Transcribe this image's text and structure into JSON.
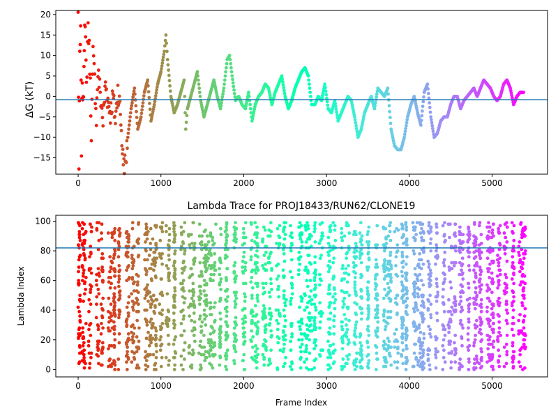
{
  "chart_data": [
    {
      "type": "scatter",
      "title": "",
      "xlabel": "",
      "ylabel": "ΔG (kT)",
      "xlim": [
        -270,
        5670
      ],
      "ylim": [
        -19,
        21
      ],
      "xticks": [
        0,
        1000,
        2000,
        3000,
        4000,
        5000
      ],
      "yticks": [
        -15,
        -10,
        -5,
        0,
        5,
        10,
        15,
        20
      ],
      "hline": -0.8,
      "hline_color": "#1f77b4",
      "colormap": "rainbow (red at frame 0 → violet at last frame)",
      "series": [
        {
          "x": [
            0,
            10,
            20,
            30,
            40,
            50,
            60,
            70,
            80,
            90,
            100,
            120,
            140,
            160,
            180,
            200,
            220,
            240,
            260,
            280,
            300,
            330,
            360,
            390,
            420,
            450,
            480,
            510,
            540,
            570,
            600,
            640,
            680,
            720,
            760,
            800,
            840,
            880,
            920,
            960,
            1000,
            1040,
            1060,
            1080,
            1120,
            1160,
            1200,
            1240,
            1280,
            1300,
            1320,
            1360,
            1400,
            1440,
            1480,
            1520,
            1560,
            1600,
            1640,
            1680,
            1720,
            1760,
            1800,
            1830,
            1860,
            1900,
            1940,
            1980,
            2020,
            2060,
            2100,
            2140,
            2180,
            2220,
            2260,
            2300,
            2340,
            2380,
            2420,
            2460,
            2500,
            2540,
            2580,
            2620,
            2660,
            2700,
            2740,
            2780,
            2820,
            2860,
            2900,
            2940,
            2980,
            3020,
            3060,
            3100,
            3140,
            3180,
            3220,
            3260,
            3300,
            3340,
            3380,
            3420,
            3460,
            3500,
            3540,
            3580,
            3620,
            3660,
            3700,
            3740,
            3780,
            3820,
            3860,
            3900,
            3940,
            3980,
            4020,
            4060,
            4100,
            4140,
            4180,
            4220,
            4260,
            4300,
            4340,
            4380,
            4420,
            4460,
            4500,
            4540,
            4580,
            4620,
            4660,
            4700,
            4740,
            4780,
            4820,
            4860,
            4900,
            4940,
            4980,
            5020,
            5060,
            5100,
            5140,
            5180,
            5220,
            5260,
            5300,
            5340,
            5380
          ],
          "y": [
            20,
            -18,
            10,
            15,
            -12,
            5,
            -3,
            8,
            20,
            12,
            2,
            18,
            8,
            -8,
            10,
            4,
            -5,
            6,
            2,
            -2,
            -6,
            3,
            -1,
            -4,
            0,
            -6,
            2,
            -4,
            -15,
            -17,
            -10,
            -3,
            2,
            -8,
            -5,
            1,
            4,
            -6,
            -2,
            3,
            6,
            11,
            15,
            9,
            0,
            -4,
            -2,
            1,
            4,
            -8,
            -3,
            0,
            3,
            6,
            -1,
            -5,
            -2,
            1,
            4,
            0,
            -3,
            2,
            9,
            10,
            5,
            -1,
            0,
            -2,
            -3,
            1,
            -6,
            -2,
            0,
            1,
            3,
            2,
            -2,
            1,
            3,
            5,
            0,
            -3,
            -1,
            2,
            4,
            6,
            7,
            5,
            -2,
            -2,
            0,
            -1,
            3,
            -3,
            -4,
            -1,
            -6,
            -4,
            -2,
            0,
            -1,
            -5,
            -10,
            -8,
            -4,
            -2,
            0,
            -3,
            2,
            1,
            0,
            2,
            -8,
            -12,
            -13,
            -13,
            -10,
            -5,
            -2,
            0,
            -4,
            -7,
            1,
            3,
            -5,
            -10,
            -9,
            -6,
            -5,
            -5,
            -2,
            0,
            0,
            -3,
            -1,
            0,
            1,
            2,
            0,
            2,
            4,
            3,
            2,
            0,
            -1,
            0,
            3,
            4,
            2,
            -2,
            0,
            1,
            1
          ]
        }
      ]
    },
    {
      "type": "scatter",
      "title": "Lambda Trace for PROJ18433/RUN62/CLONE19",
      "xlabel": "Frame Index",
      "ylabel": "Lambda Index",
      "xlim": [
        -270,
        5670
      ],
      "ylim": [
        -5,
        104
      ],
      "xticks": [
        0,
        1000,
        2000,
        3000,
        4000,
        5000
      ],
      "yticks": [
        0,
        20,
        40,
        60,
        80,
        100
      ],
      "hline": 82,
      "hline_color": "#1f77b4",
      "colormap": "rainbow (red at frame 0 → violet at last frame)",
      "n_points_approx": 5400,
      "point_distribution": "each frame visits a lambda window between 0 and 99; points cluster into vertical streaks roughly every 40–120 frames"
    }
  ]
}
